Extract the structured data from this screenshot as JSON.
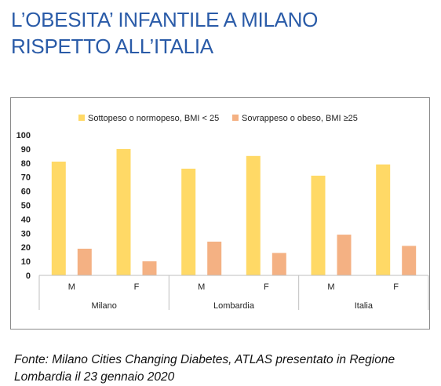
{
  "page": {
    "title_line1": "L’OBESITA’ INFANTILE A MILANO",
    "title_line2": "RISPETTO ALL’ITALIA",
    "source_line1": "Fonte: Milano Cities Changing Diabetes, ATLAS presentato in Regione",
    "source_line2": "Lombardia il 23 gennaio 2020"
  },
  "chart_data": {
    "type": "bar",
    "title": "",
    "xlabel": "",
    "ylabel": "",
    "ylim": [
      0,
      100
    ],
    "yticks": [
      0,
      10,
      20,
      30,
      40,
      50,
      60,
      70,
      80,
      90,
      100
    ],
    "grid": false,
    "legend_position": "top",
    "groups": [
      "Milano",
      "Lombardia",
      "Italia"
    ],
    "categories": [
      "M",
      "F",
      "M",
      "F",
      "M",
      "F"
    ],
    "series": [
      {
        "name": "Sottopeso o normopeso,  BMI < 25",
        "color": "#ffd966",
        "values": [
          81,
          90,
          76,
          85,
          71,
          79
        ]
      },
      {
        "name": "Sovrappeso o obeso, BMI ≥25",
        "color": "#f4b183",
        "values": [
          19,
          10,
          24,
          16,
          29,
          21
        ]
      }
    ]
  }
}
